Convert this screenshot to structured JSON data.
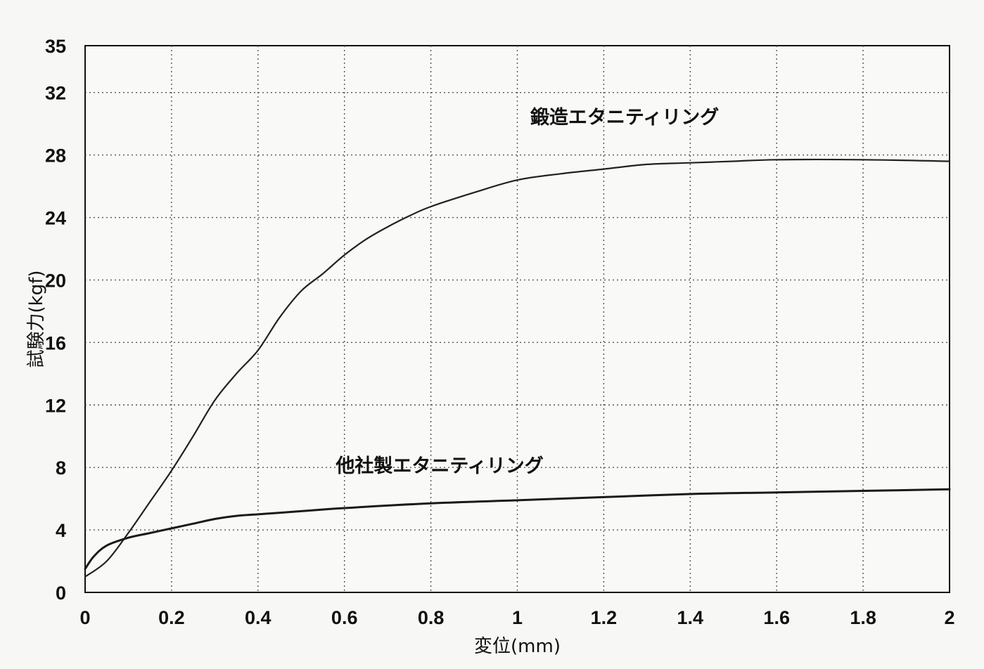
{
  "chart_data": {
    "type": "line",
    "title": "",
    "xlabel": "変位(mm)",
    "ylabel": "試験力(kgf)",
    "xlim": [
      0,
      2
    ],
    "ylim": [
      0,
      35
    ],
    "grid": true,
    "x_ticks": [
      {
        "value": 0,
        "label": "0"
      },
      {
        "value": 0.2,
        "label": "0.2"
      },
      {
        "value": 0.4,
        "label": "0.4"
      },
      {
        "value": 0.6,
        "label": "0.6"
      },
      {
        "value": 0.8,
        "label": "0.8"
      },
      {
        "value": 1,
        "label": "1"
      },
      {
        "value": 1.2,
        "label": "1.2"
      },
      {
        "value": 1.4,
        "label": "1.4"
      },
      {
        "value": 1.6,
        "label": "1.6"
      },
      {
        "value": 1.8,
        "label": "1.8"
      },
      {
        "value": 2,
        "label": "2"
      }
    ],
    "y_ticks": [
      {
        "value": 0,
        "label": "0"
      },
      {
        "value": 4,
        "label": "4"
      },
      {
        "value": 8,
        "label": "8"
      },
      {
        "value": 12,
        "label": "12"
      },
      {
        "value": 16,
        "label": "16"
      },
      {
        "value": 20,
        "label": "20"
      },
      {
        "value": 24,
        "label": "24"
      },
      {
        "value": 28,
        "label": "28"
      },
      {
        "value": 32,
        "label": "32"
      },
      {
        "value": 35,
        "label": "35"
      }
    ],
    "series": [
      {
        "name": "鍛造エタニティリング",
        "color": "#222222",
        "x": [
          0,
          0.05,
          0.1,
          0.15,
          0.2,
          0.25,
          0.3,
          0.35,
          0.4,
          0.45,
          0.5,
          0.55,
          0.6,
          0.65,
          0.7,
          0.75,
          0.8,
          0.9,
          1.0,
          1.1,
          1.2,
          1.3,
          1.4,
          1.5,
          1.6,
          1.8,
          2.0
        ],
        "y": [
          1.0,
          2.0,
          3.8,
          5.8,
          7.8,
          10.0,
          12.3,
          14.0,
          15.5,
          17.6,
          19.3,
          20.4,
          21.6,
          22.6,
          23.4,
          24.1,
          24.7,
          25.6,
          26.4,
          26.8,
          27.1,
          27.4,
          27.5,
          27.6,
          27.7,
          27.7,
          27.6
        ]
      },
      {
        "name": "他社製エタニティリング",
        "color": "#1a1a1a",
        "x": [
          0,
          0.02,
          0.05,
          0.1,
          0.15,
          0.2,
          0.25,
          0.3,
          0.35,
          0.4,
          0.5,
          0.6,
          0.8,
          1.0,
          1.2,
          1.4,
          1.6,
          1.8,
          2.0
        ],
        "y": [
          1.5,
          2.3,
          3.0,
          3.5,
          3.8,
          4.1,
          4.4,
          4.7,
          4.9,
          5.0,
          5.2,
          5.4,
          5.7,
          5.9,
          6.1,
          6.3,
          6.4,
          6.5,
          6.6
        ]
      }
    ],
    "annotations": [
      {
        "text": "鍛造エタニティリング",
        "x": 1.03,
        "y": 30.0
      },
      {
        "text": "他社製エタニティリング",
        "x": 0.58,
        "y": 7.7
      }
    ]
  }
}
